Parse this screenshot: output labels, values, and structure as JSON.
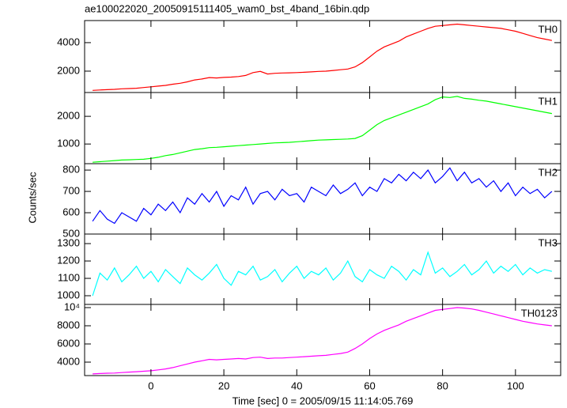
{
  "title": "ae100022020_20050915111405_wam0_bst_4band_16bin.qdp",
  "x_label": "Time [sec] 0 = 2005/09/15 11:14:05.769",
  "y_label": "Counts/sec",
  "chart_data": {
    "type": "line",
    "x": [
      -16,
      -14,
      -12,
      -10,
      -8,
      -6,
      -4,
      -2,
      0,
      2,
      4,
      6,
      8,
      10,
      12,
      14,
      16,
      18,
      20,
      22,
      24,
      26,
      28,
      30,
      32,
      34,
      36,
      38,
      40,
      42,
      44,
      46,
      48,
      50,
      52,
      54,
      56,
      58,
      60,
      62,
      64,
      66,
      68,
      70,
      72,
      74,
      76,
      78,
      80,
      82,
      84,
      86,
      88,
      90,
      92,
      94,
      96,
      98,
      100,
      102,
      104,
      106,
      108,
      110
    ],
    "xlim": [
      -18.2,
      112.4
    ],
    "xticks": [
      0,
      20,
      40,
      60,
      80,
      100
    ],
    "series": [
      {
        "name": "TH0",
        "color": "#ff0000",
        "ylim": [
          500,
          5550
        ],
        "yticks": [
          2000,
          4000
        ],
        "values": [
          650,
          680,
          700,
          720,
          760,
          780,
          800,
          850,
          900,
          950,
          1000,
          1080,
          1150,
          1250,
          1380,
          1450,
          1550,
          1520,
          1560,
          1580,
          1620,
          1700,
          1900,
          1980,
          1800,
          1850,
          1870,
          1880,
          1900,
          1920,
          1950,
          1980,
          2000,
          2050,
          2100,
          2150,
          2300,
          2600,
          3000,
          3400,
          3700,
          3900,
          4100,
          4400,
          4600,
          4800,
          5000,
          5150,
          5200,
          5250,
          5300,
          5250,
          5200,
          5150,
          5100,
          5050,
          5000,
          4900,
          4800,
          4650,
          4500,
          4350,
          4250,
          4150
        ]
      },
      {
        "name": "TH1",
        "color": "#00ff00",
        "ylim": [
          290,
          2860
        ],
        "yticks": [
          1000,
          2000
        ],
        "values": [
          340,
          360,
          380,
          400,
          420,
          430,
          440,
          450,
          480,
          520,
          580,
          620,
          680,
          740,
          800,
          830,
          870,
          880,
          900,
          920,
          940,
          960,
          980,
          1000,
          1020,
          1040,
          1050,
          1060,
          1080,
          1100,
          1120,
          1140,
          1150,
          1160,
          1170,
          1180,
          1200,
          1300,
          1500,
          1700,
          1850,
          1950,
          2050,
          2150,
          2250,
          2350,
          2450,
          2600,
          2700,
          2680,
          2720,
          2650,
          2620,
          2580,
          2550,
          2500,
          2450,
          2400,
          2350,
          2300,
          2250,
          2200,
          2150,
          2100
        ]
      },
      {
        "name": "TH2",
        "color": "#0000ff",
        "ylim": [
          500,
          830
        ],
        "yticks": [
          500,
          600,
          700,
          800
        ],
        "values": [
          560,
          610,
          570,
          550,
          600,
          580,
          560,
          620,
          590,
          640,
          610,
          650,
          600,
          670,
          640,
          690,
          650,
          700,
          630,
          680,
          660,
          720,
          640,
          690,
          700,
          660,
          710,
          680,
          690,
          650,
          720,
          700,
          680,
          730,
          690,
          710,
          740,
          680,
          720,
          700,
          760,
          740,
          780,
          750,
          790,
          760,
          800,
          740,
          770,
          810,
          750,
          790,
          740,
          760,
          720,
          750,
          700,
          740,
          680,
          720,
          690,
          710,
          670,
          700
        ]
      },
      {
        "name": "TH3",
        "color": "#00ffff",
        "ylim": [
          950,
          1355
        ],
        "yticks": [
          1000,
          1100,
          1200,
          1300
        ],
        "values": [
          1000,
          1130,
          1090,
          1160,
          1080,
          1120,
          1170,
          1100,
          1140,
          1080,
          1150,
          1110,
          1070,
          1160,
          1120,
          1090,
          1130,
          1180,
          1100,
          1060,
          1140,
          1120,
          1170,
          1090,
          1110,
          1150,
          1080,
          1130,
          1170,
          1100,
          1140,
          1120,
          1160,
          1090,
          1130,
          1200,
          1110,
          1080,
          1150,
          1120,
          1100,
          1170,
          1140,
          1090,
          1150,
          1120,
          1250,
          1130,
          1160,
          1110,
          1140,
          1180,
          1120,
          1150,
          1200,
          1130,
          1170,
          1140,
          1180,
          1120,
          1160,
          1130,
          1150,
          1140
        ]
      },
      {
        "name": "TH0123",
        "color": "#ff00ff",
        "ylim": [
          2520,
          10350
        ],
        "yticks": [
          4000,
          6000,
          8000,
          {
            "value": 10000,
            "label": "10⁴"
          }
        ],
        "values": [
          2700,
          2750,
          2780,
          2800,
          2850,
          2900,
          2950,
          3000,
          3050,
          3150,
          3250,
          3400,
          3600,
          3800,
          4000,
          4150,
          4300,
          4250,
          4300,
          4350,
          4400,
          4350,
          4500,
          4550,
          4400,
          4450,
          4450,
          4500,
          4550,
          4600,
          4650,
          4700,
          4750,
          4850,
          4950,
          5100,
          5500,
          6000,
          6600,
          7100,
          7500,
          7800,
          8100,
          8500,
          8800,
          9100,
          9400,
          9700,
          9800,
          9900,
          10000,
          9950,
          9850,
          9700,
          9500,
          9300,
          9100,
          8900,
          8700,
          8500,
          8350,
          8200,
          8100,
          8000
        ]
      }
    ]
  }
}
